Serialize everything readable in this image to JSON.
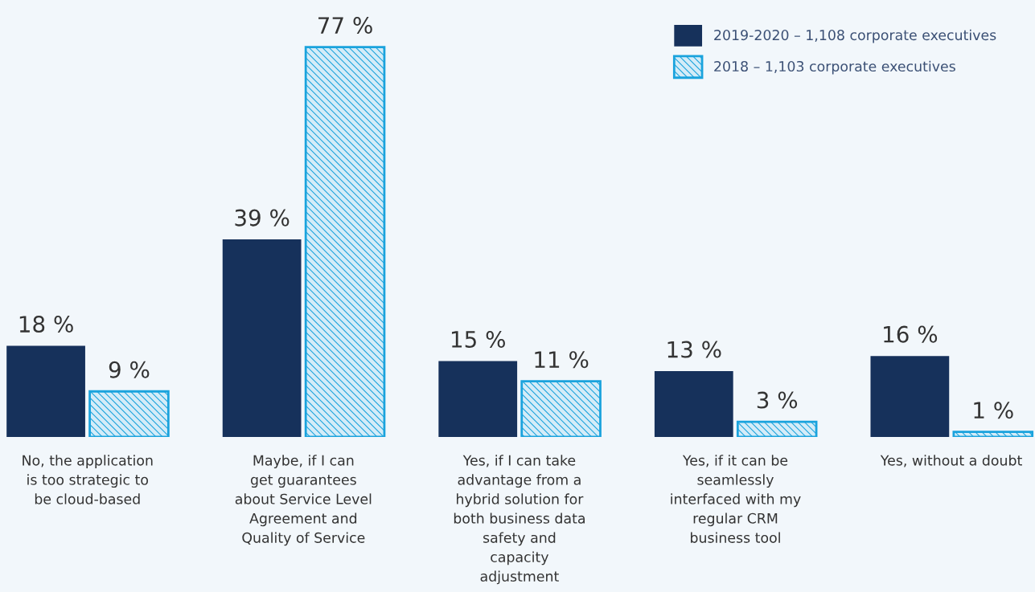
{
  "chart_data": {
    "type": "bar",
    "categories": [
      "No, the application\nis too strategic to\nbe cloud-based",
      "Maybe, if I can\nget guarantees\nabout Service Level\nAgreement and\nQuality of Service",
      "Yes, if I can take\nadvantage from a\nhybrid solution for\nboth business data\nsafety and\ncapacity\nadjustment",
      "Yes, if it can be\nseamlessly\ninterfaced with my\nregular CRM\nbusiness tool",
      "Yes, without a doubt"
    ],
    "series": [
      {
        "name": "2019-2020 – 1,108 corporate executives",
        "color": "#16315b",
        "values": [
          18,
          39,
          15,
          13,
          16
        ],
        "value_labels": [
          "18 %",
          "39 %",
          "15 %",
          "13 %",
          "16 %"
        ]
      },
      {
        "name": "2018 – 1,103 corporate executives",
        "color": "#1aa3dd",
        "values": [
          9,
          77,
          11,
          3,
          1
        ],
        "value_labels": [
          "9 %",
          "77 %",
          "11 %",
          "3 %",
          "1 %"
        ]
      }
    ],
    "legend": "top right",
    "grid": false
  }
}
